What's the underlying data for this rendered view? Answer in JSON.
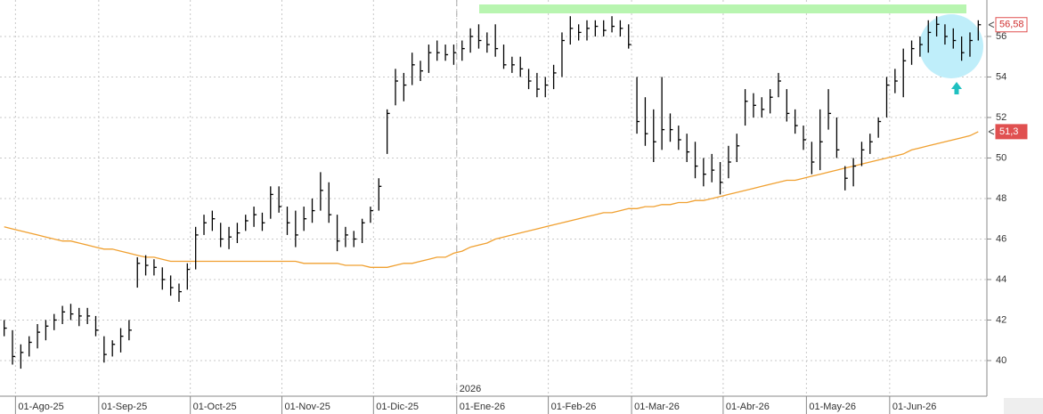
{
  "chart_data": {
    "type": "ohlc",
    "color": "#000000",
    "categories": [
      null,
      null,
      "01-Ago-25",
      null,
      null,
      null,
      null,
      null,
      null,
      null,
      null,
      null,
      "01-Sep-25",
      null,
      null,
      null,
      null,
      null,
      null,
      null,
      null,
      null,
      null,
      "01-Oct-25",
      null,
      null,
      null,
      null,
      null,
      null,
      null,
      null,
      null,
      null,
      "01-Nov-25",
      null,
      null,
      null,
      null,
      null,
      null,
      null,
      null,
      null,
      null,
      "01-Dic-25",
      null,
      null,
      null,
      null,
      null,
      null,
      null,
      null,
      null,
      "01-Ene-26",
      null,
      null,
      null,
      null,
      null,
      null,
      null,
      null,
      null,
      null,
      "01-Feb-26",
      null,
      null,
      null,
      null,
      null,
      null,
      null,
      null,
      null,
      "01-Mar-26",
      null,
      null,
      null,
      null,
      null,
      null,
      null,
      null,
      null,
      null,
      "01-Abr-26",
      null,
      null,
      null,
      null,
      null,
      null,
      null,
      null,
      null,
      "01-May-26",
      null,
      null,
      null,
      null,
      null,
      null,
      null,
      null,
      null,
      "01-Jun-26",
      null,
      null,
      null,
      null,
      null,
      null,
      null,
      null,
      null,
      null
    ],
    "high": [
      42,
      41.5,
      40.8,
      41.2,
      41.8,
      42,
      42.3,
      42.7,
      42.8,
      42.6,
      42.6,
      42.2,
      41.2,
      41,
      41.6,
      42,
      45.1,
      45.2,
      45,
      44.6,
      44.2,
      43.8,
      44.8,
      46.6,
      47.2,
      47.4,
      46.8,
      46.6,
      46.8,
      47.2,
      47.6,
      47.3,
      48.6,
      48.6,
      47.6,
      47.4,
      47.6,
      48,
      49.3,
      48.8,
      47.2,
      46.6,
      46.4,
      47,
      47.6,
      49,
      52.4,
      54.4,
      54.2,
      55.2,
      54.8,
      55.6,
      55.8,
      55.6,
      55.6,
      55.8,
      56.4,
      56.6,
      56.2,
      56.6,
      55.6,
      55,
      55,
      54.4,
      54.2,
      54,
      54.6,
      56.2,
      57,
      56.6,
      56.8,
      56.8,
      56.8,
      57,
      56.8,
      56.6,
      54,
      53,
      52.4,
      54,
      52.2,
      51.6,
      51.2,
      50.8,
      50,
      50.2,
      49.8,
      50.6,
      51.2,
      53.4,
      53.2,
      53,
      53.4,
      54.2,
      53.4,
      52.4,
      51.6,
      50.8,
      52.4,
      53.4,
      52,
      49.6,
      50,
      50.8,
      51.2,
      52,
      54,
      54.4,
      55.4,
      55.8,
      56,
      56.8,
      57,
      56.6,
      56.4,
      56,
      56.2,
      56.8
    ],
    "low": [
      41.2,
      39.8,
      39.6,
      40.2,
      40.6,
      41,
      41.5,
      41.8,
      42,
      41.7,
      41.8,
      41.2,
      39.9,
      40.2,
      40.4,
      41,
      43.6,
      44.2,
      44.2,
      43.5,
      43.2,
      42.9,
      43.5,
      44.5,
      46.2,
      46.4,
      45.6,
      45.5,
      45.8,
      46.4,
      46.6,
      46.4,
      47,
      47.3,
      46.2,
      45.6,
      46.4,
      46.8,
      47.4,
      46.8,
      45.4,
      45.6,
      45.6,
      45.8,
      46.8,
      47.4,
      50.2,
      52.6,
      52.8,
      53.6,
      53.8,
      54.2,
      54.8,
      54.8,
      54.6,
      54.8,
      55.2,
      55.4,
      55.2,
      55,
      54.4,
      54.2,
      54,
      53.4,
      53,
      53,
      53.4,
      54,
      55.6,
      55.8,
      55.8,
      56,
      56,
      56.2,
      56,
      55.4,
      51.2,
      50.6,
      49.8,
      50.4,
      50.8,
      50.4,
      49.8,
      49,
      48.6,
      48.8,
      48.2,
      49,
      49.8,
      51.6,
      52,
      52,
      52.2,
      53,
      51.8,
      51.2,
      50.4,
      49.2,
      49.4,
      51.4,
      50,
      48.4,
      48.6,
      49.6,
      50.2,
      51,
      52,
      53.2,
      53,
      54.6,
      55,
      55.2,
      56,
      55.6,
      55.4,
      54.8,
      55,
      55.8
    ],
    "close": [
      41.6,
      40.2,
      40.4,
      40.9,
      41.4,
      41.7,
      42,
      42.4,
      42.3,
      42.2,
      42.2,
      41.5,
      40.3,
      40.8,
      41.2,
      41.5,
      44.8,
      44.7,
      44.6,
      44,
      43.6,
      43.4,
      44.5,
      46.2,
      46.8,
      47,
      46,
      46.1,
      46.3,
      46.9,
      47.2,
      46.8,
      48.2,
      47.6,
      46.8,
      46.2,
      47,
      47.4,
      48.4,
      47.2,
      45.9,
      46.2,
      46,
      46.8,
      47.4,
      48.6,
      52.2,
      53.8,
      53.6,
      54.6,
      54.3,
      55.2,
      55.2,
      55.1,
      55.2,
      55.4,
      56,
      55.8,
      55.6,
      55.4,
      54.6,
      54.6,
      54.4,
      53.8,
      53.4,
      53.6,
      54.2,
      55.8,
      56.4,
      56.2,
      56.4,
      56.5,
      56.3,
      56.5,
      56.4,
      55.6,
      51.8,
      51.2,
      50.8,
      51.4,
      51.4,
      50.9,
      50.3,
      49.6,
      49.2,
      49.4,
      48.8,
      49.8,
      50.6,
      52.8,
      52.6,
      52.4,
      53,
      53.8,
      52.2,
      51.6,
      50.9,
      49.8,
      50.8,
      52.2,
      50.4,
      49,
      49.6,
      50.4,
      50.8,
      51.8,
      53.6,
      53.8,
      54.8,
      55.4,
      55.6,
      56.2,
      56.6,
      56,
      55.8,
      55.2,
      55.8,
      56.58
    ],
    "value_labels": [
      null,
      null,
      null,
      null,
      null,
      null,
      null,
      null,
      null,
      null,
      null,
      null,
      null,
      null,
      null,
      null,
      null,
      null,
      null,
      null,
      null,
      null,
      null,
      null,
      null,
      null,
      null,
      null,
      null,
      null,
      null,
      null,
      null,
      null,
      null,
      null,
      null,
      null,
      null,
      null,
      null,
      null,
      null,
      null,
      null,
      null,
      null,
      null,
      null,
      null,
      null,
      null,
      null,
      null,
      null,
      null,
      null,
      null,
      null,
      null,
      null,
      null,
      null,
      null,
      null,
      null,
      null,
      null,
      null,
      null,
      null,
      null,
      null,
      null,
      null,
      null,
      null,
      null,
      null,
      null,
      null,
      null,
      null,
      null,
      null,
      null,
      null,
      null,
      null,
      null,
      null,
      null,
      null,
      null,
      null,
      null,
      null,
      null,
      null,
      null,
      null,
      null,
      null,
      null,
      null,
      null,
      null,
      null,
      null,
      null,
      null,
      null,
      null,
      null,
      null,
      null,
      null,
      "56,58"
    ],
    "overlay": {
      "type": "line",
      "color": "#f0a030",
      "values": [
        46.6,
        46.5,
        46.4,
        46.3,
        46.2,
        46.1,
        46.0,
        45.9,
        45.9,
        45.8,
        45.7,
        45.6,
        45.5,
        45.5,
        45.4,
        45.3,
        45.2,
        45.1,
        45.1,
        45.0,
        44.9,
        44.9,
        44.9,
        44.9,
        44.9,
        44.9,
        44.9,
        44.9,
        44.9,
        44.9,
        44.9,
        44.9,
        44.9,
        44.9,
        44.9,
        44.9,
        44.8,
        44.8,
        44.8,
        44.8,
        44.8,
        44.7,
        44.7,
        44.7,
        44.6,
        44.6,
        44.6,
        44.7,
        44.8,
        44.8,
        44.9,
        45.0,
        45.1,
        45.1,
        45.3,
        45.4,
        45.6,
        45.7,
        45.8,
        46.0,
        46.1,
        46.2,
        46.3,
        46.4,
        46.5,
        46.6,
        46.7,
        46.8,
        46.9,
        47.0,
        47.1,
        47.2,
        47.3,
        47.3,
        47.4,
        47.5,
        47.5,
        47.6,
        47.6,
        47.7,
        47.7,
        47.8,
        47.8,
        47.9,
        47.9,
        48.0,
        48.1,
        48.2,
        48.3,
        48.4,
        48.5,
        48.6,
        48.7,
        48.8,
        48.9,
        48.9,
        49.0,
        49.1,
        49.2,
        49.3,
        49.4,
        49.5,
        49.6,
        49.7,
        49.8,
        49.9,
        50.0,
        50.1,
        50.2,
        50.4,
        50.5,
        50.6,
        50.7,
        50.8,
        50.9,
        51.0,
        51.1,
        51.3
      ],
      "value_labels": [
        null,
        null,
        null,
        null,
        null,
        null,
        null,
        null,
        null,
        null,
        null,
        null,
        null,
        null,
        null,
        null,
        null,
        null,
        null,
        null,
        null,
        null,
        null,
        null,
        null,
        null,
        null,
        null,
        null,
        null,
        null,
        null,
        null,
        null,
        null,
        null,
        null,
        null,
        null,
        null,
        null,
        null,
        null,
        null,
        null,
        null,
        null,
        null,
        null,
        null,
        null,
        null,
        null,
        null,
        null,
        null,
        null,
        null,
        null,
        null,
        null,
        null,
        null,
        null,
        null,
        null,
        null,
        null,
        null,
        null,
        null,
        null,
        null,
        null,
        null,
        null,
        null,
        null,
        null,
        null,
        null,
        null,
        null,
        null,
        null,
        null,
        null,
        null,
        null,
        null,
        null,
        null,
        null,
        null,
        null,
        null,
        null,
        null,
        null,
        null,
        null,
        null,
        null,
        null,
        null,
        null,
        null,
        null,
        null,
        null,
        null,
        null,
        null,
        null,
        null,
        null,
        null,
        "51,3"
      ]
    },
    "year_marker": {
      "index": 55,
      "label": "2026"
    },
    "ylim": [
      38.24,
      57.8
    ],
    "yticks": [
      40,
      42,
      44,
      46,
      48,
      50,
      52,
      54,
      56
    ],
    "grid": true
  }
}
